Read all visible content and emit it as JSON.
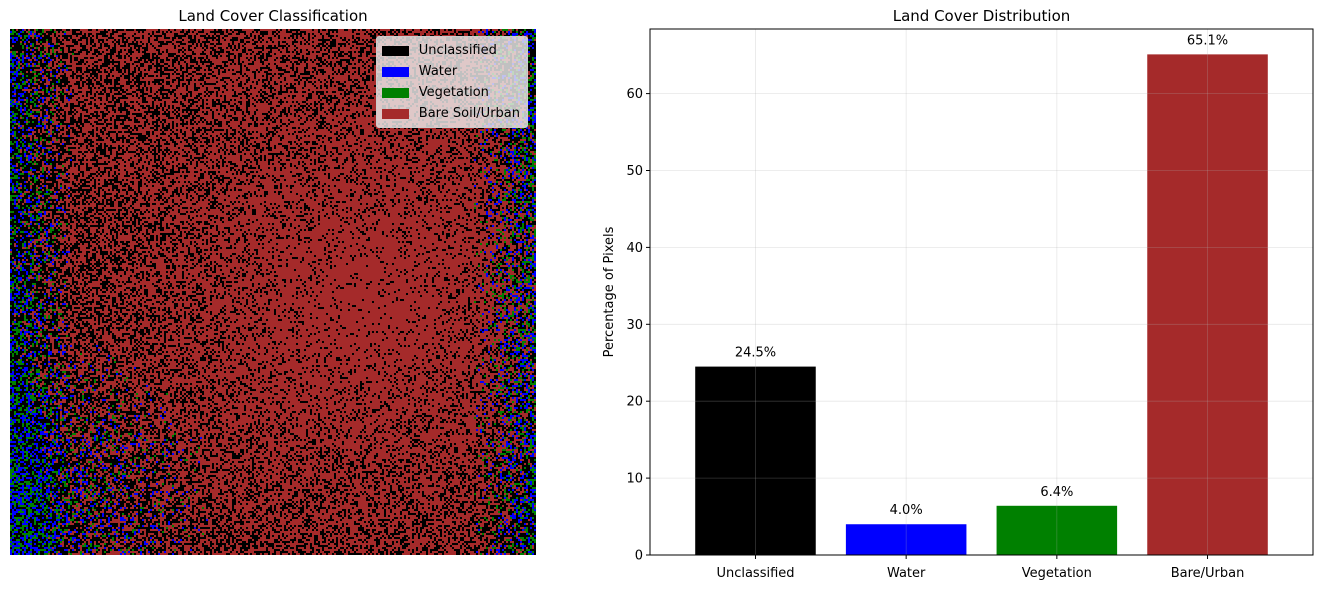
{
  "chart_data": [
    {
      "type": "heatmap",
      "title": "Land Cover Classification",
      "legend": {
        "placement": "top-right",
        "entries": [
          {
            "label": "Unclassified",
            "color": "#000000"
          },
          {
            "label": "Water",
            "color": "#0000ff"
          },
          {
            "label": "Vegetation",
            "color": "#008000"
          },
          {
            "label": "Bare Soil/Urban",
            "color": "#a52a2a"
          }
        ]
      }
    },
    {
      "type": "bar",
      "title": "Land Cover Distribution",
      "xlabel": "",
      "ylabel": "Percentage of Pixels",
      "categories": [
        "Unclassified",
        "Water",
        "Vegetation",
        "Bare/Urban"
      ],
      "values": [
        24.5,
        4.0,
        6.4,
        65.1
      ],
      "data_labels": [
        "24.5%",
        "4.0%",
        "6.4%",
        "65.1%"
      ],
      "colors": [
        "#000000",
        "#0000ff",
        "#008000",
        "#a52a2a"
      ],
      "ylim": [
        0,
        68.4
      ],
      "yticks": [
        0,
        10,
        20,
        30,
        40,
        50,
        60
      ],
      "grid": true
    }
  ]
}
